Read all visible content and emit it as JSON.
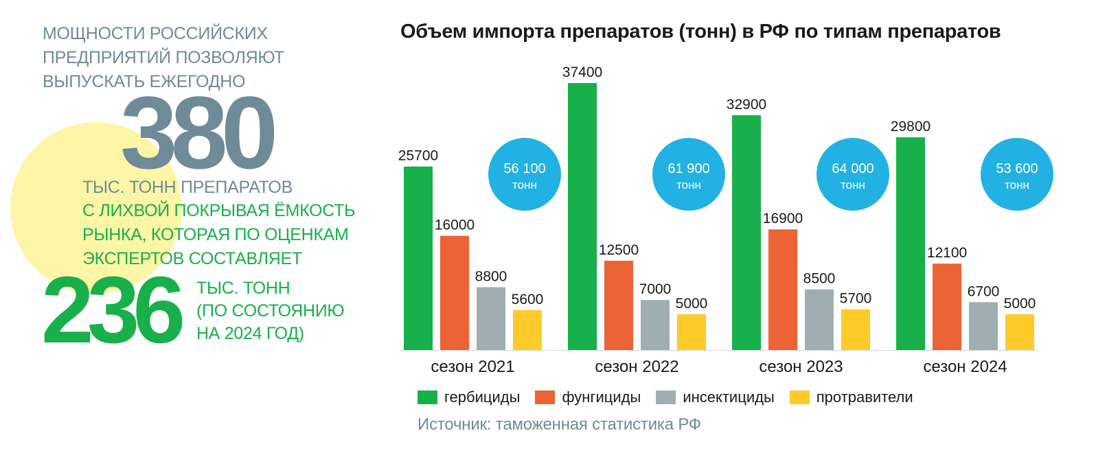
{
  "intro_text": [
    "МОЩНОСТИ РОССИЙСКИХ",
    "ПРЕДПРИЯТИЙ ПОЗВОЛЯЮТ",
    "ВЫПУСКАТЬ ЕЖЕГОДНО"
  ],
  "capacity": {
    "value": "380",
    "unit": "ТЫС. ТОНН ПРЕПАРАТОВ"
  },
  "market_text": [
    "С ЛИХВОЙ ПОКРЫВАЯ ЁМКОСТЬ",
    "РЫНКА, КОТОРАЯ ПО ОЦЕНКАМ",
    "ЭКСПЕРТОВ СОСТАВЛЯЕТ"
  ],
  "market": {
    "value": "236",
    "unit_lines": [
      "ТЫС. ТОНН",
      "(ПО СОСТОЯНИЮ",
      "НА 2024 ГОД)"
    ]
  },
  "colors": {
    "gray_text": "#6f8b98",
    "green": "#18b04a",
    "orange": "#ec6336",
    "gray_bar": "#a0aeb4",
    "yellow": "#fecb2a",
    "blue_circle": "#21b2e3",
    "yellow_circle": "#fdf6a6"
  },
  "chart_data": {
    "type": "bar",
    "title": "Объем импорта препаратов (тонн) в РФ по типам препаратов",
    "categories": [
      "сезон 2021",
      "сезон 2022",
      "сезон 2023",
      "сезон 2024"
    ],
    "series": [
      {
        "name": "гербициды",
        "color": "#18b04a",
        "values": [
          25700,
          37400,
          32900,
          29800
        ]
      },
      {
        "name": "фунгициды",
        "color": "#ec6336",
        "values": [
          16000,
          12500,
          16900,
          12100
        ]
      },
      {
        "name": "инсектициды",
        "color": "#a0aeb4",
        "values": [
          8800,
          7000,
          8500,
          6700
        ]
      },
      {
        "name": "протравители",
        "color": "#fecb2a",
        "values": [
          5600,
          5000,
          5700,
          5000
        ]
      }
    ],
    "totals": [
      {
        "value": "56 100",
        "unit": "тонн"
      },
      {
        "value": "61 900",
        "unit": "тонн"
      },
      {
        "value": "64 000",
        "unit": "тонн"
      },
      {
        "value": "53 600",
        "unit": "тонн"
      }
    ],
    "xlabel": "",
    "ylabel": "",
    "ylim": [
      0,
      37400
    ],
    "grid": false,
    "legend": "bottom"
  },
  "source": "Источник: таможенная статистика РФ"
}
